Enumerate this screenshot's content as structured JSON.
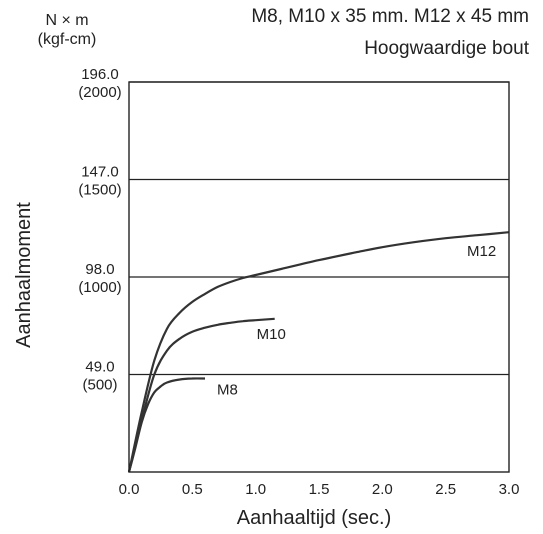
{
  "chart_data": {
    "type": "line",
    "title": "M8, M10 x 35 mm. M12 x 45 mm",
    "subtitle": "Hoogwaardige bout",
    "xlabel": "Aanhaaltijd (sec.)",
    "ylabel": "Aanhaalmoment",
    "yunit_line1": "N × m",
    "yunit_line2": "(kgf-cm)",
    "xlim": [
      0,
      3.0
    ],
    "ylim": [
      0,
      196.0
    ],
    "xticks": [
      "0.0",
      "0.5",
      "1.0",
      "1.5",
      "2.0",
      "2.5",
      "3.0"
    ],
    "yticks": [
      {
        "value": 49.0,
        "label": "49.0",
        "sub": "(500)"
      },
      {
        "value": 98.0,
        "label": "98.0",
        "sub": "(1000)"
      },
      {
        "value": 147.0,
        "label": "147.0",
        "sub": "(1500)"
      },
      {
        "value": 196.0,
        "label": "196.0",
        "sub": "(2000)"
      }
    ],
    "grid": "horizontal",
    "series": [
      {
        "name": "M8",
        "x": [
          0,
          0.05,
          0.1,
          0.15,
          0.2,
          0.25,
          0.3,
          0.4,
          0.5,
          0.6
        ],
        "y": [
          0,
          12,
          25,
          34,
          40,
          43,
          45,
          46.5,
          47,
          47
        ]
      },
      {
        "name": "M10",
        "x": [
          0,
          0.1,
          0.2,
          0.3,
          0.4,
          0.5,
          0.6,
          0.7,
          0.8,
          0.9,
          1.0,
          1.15
        ],
        "y": [
          0,
          26,
          49,
          61,
          67,
          70.5,
          72.5,
          74,
          75,
          75.8,
          76.3,
          77
        ]
      },
      {
        "name": "M12",
        "x": [
          0,
          0.1,
          0.2,
          0.3,
          0.4,
          0.5,
          0.6,
          0.7,
          0.8,
          0.9,
          1.0,
          1.2,
          1.5,
          1.8,
          2.0,
          2.25,
          2.5,
          2.75,
          3.0
        ],
        "y": [
          0,
          30,
          56,
          72,
          80,
          85.5,
          89.5,
          93,
          95.5,
          97.5,
          99,
          102,
          106.5,
          110.5,
          113,
          115.5,
          117.5,
          119,
          120.5
        ]
      }
    ]
  }
}
